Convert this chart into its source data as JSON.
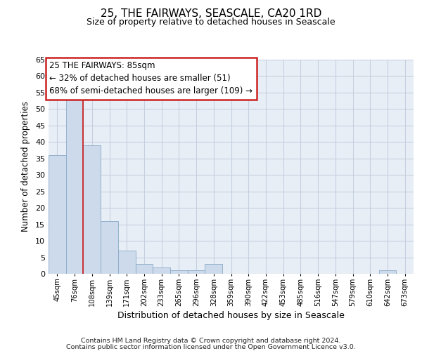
{
  "title1": "25, THE FAIRWAYS, SEASCALE, CA20 1RD",
  "title2": "Size of property relative to detached houses in Seascale",
  "xlabel": "Distribution of detached houses by size in Seascale",
  "ylabel": "Number of detached properties",
  "bar_labels": [
    "45sqm",
    "76sqm",
    "108sqm",
    "139sqm",
    "171sqm",
    "202sqm",
    "233sqm",
    "265sqm",
    "296sqm",
    "328sqm",
    "359sqm",
    "390sqm",
    "422sqm",
    "453sqm",
    "485sqm",
    "516sqm",
    "547sqm",
    "579sqm",
    "610sqm",
    "642sqm",
    "673sqm"
  ],
  "bar_values": [
    36,
    53,
    39,
    16,
    7,
    3,
    2,
    1,
    1,
    3,
    0,
    0,
    0,
    0,
    0,
    0,
    0,
    0,
    0,
    1,
    0
  ],
  "bar_color": "#ccdaeb",
  "bar_edge_color": "#8aaac8",
  "ylim": [
    0,
    65
  ],
  "yticks": [
    0,
    5,
    10,
    15,
    20,
    25,
    30,
    35,
    40,
    45,
    50,
    55,
    60,
    65
  ],
  "grid_color": "#c5d0e0",
  "bg_color": "#e8eef6",
  "red_line_xindex": 1,
  "ann_line1": "25 THE FAIRWAYS: 85sqm",
  "ann_line2": "← 32% of detached houses are smaller (51)",
  "ann_line3": "68% of semi-detached houses are larger (109) →",
  "footer_line1": "Contains HM Land Registry data © Crown copyright and database right 2024.",
  "footer_line2": "Contains public sector information licensed under the Open Government Licence v3.0."
}
